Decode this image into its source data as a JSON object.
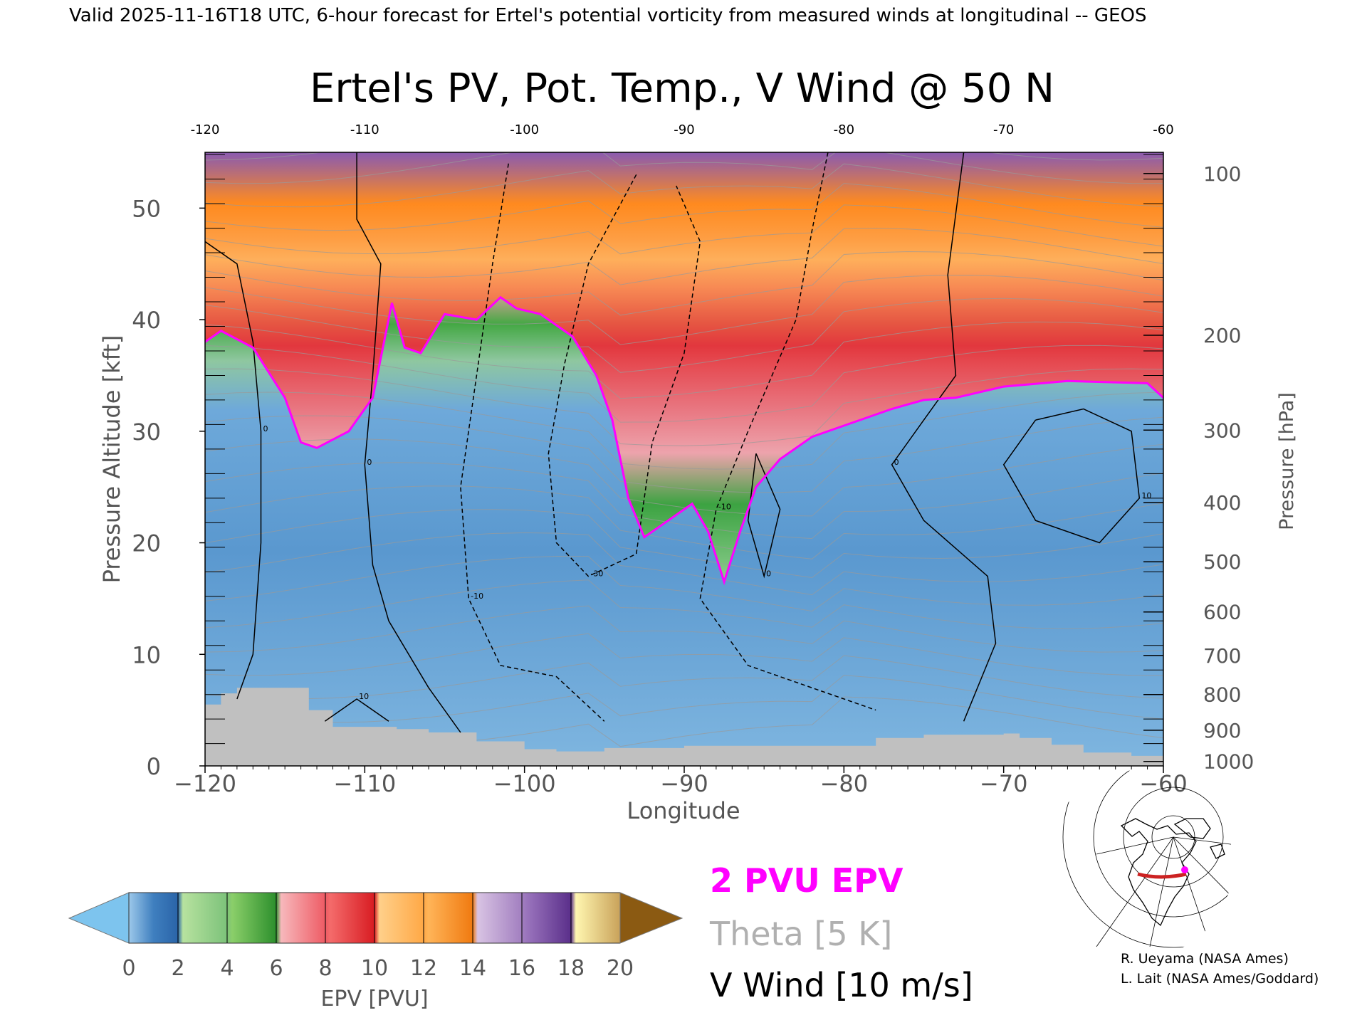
{
  "header": {
    "valid_line": "Valid 2025-11-16T18 UTC, 6-hour forecast for Ertel's potential vorticity from measured winds at longitudinal -- GEOS"
  },
  "chart_data": {
    "type": "heatmap",
    "title": "Ertel's PV, Pot. Temp., V Wind @ 50 N",
    "xlabel": "Longitude",
    "ylabel_left": "Pressure Altitude [kft]",
    "ylabel_right": "Pressure [hPa]",
    "xlim": [
      -120,
      -60
    ],
    "ylim": [
      0,
      55
    ],
    "x_ticks": [
      -120,
      -110,
      -100,
      -90,
      -80,
      -70,
      -60
    ],
    "x_tick_labels": [
      "−120",
      "−110",
      "−100",
      "−90",
      "−80",
      "−70",
      "−60"
    ],
    "top_tick_labels": [
      "-120",
      "-110",
      "-100",
      "-90",
      "-80",
      "-70",
      "-60"
    ],
    "y_ticks": [
      0,
      10,
      20,
      30,
      40,
      50
    ],
    "y_tick_labels": [
      "0",
      "10",
      "20",
      "30",
      "40",
      "50"
    ],
    "pressure_ticks": [
      {
        "hpa": "100",
        "kft": 53.1
      },
      {
        "hpa": "200",
        "kft": 38.6
      },
      {
        "hpa": "300",
        "kft": 30.1
      },
      {
        "hpa": "400",
        "kft": 23.6
      },
      {
        "hpa": "500",
        "kft": 18.3
      },
      {
        "hpa": "600",
        "kft": 13.8
      },
      {
        "hpa": "700",
        "kft": 9.9
      },
      {
        "hpa": "800",
        "kft": 6.4
      },
      {
        "hpa": "900",
        "kft": 3.2
      },
      {
        "hpa": "1000",
        "kft": 0.4
      }
    ],
    "pv_2pvu_contour": [
      [
        -120,
        38
      ],
      [
        -119,
        39
      ],
      [
        -117,
        37.5
      ],
      [
        -115,
        33
      ],
      [
        -114,
        29
      ],
      [
        -113,
        28.5
      ],
      [
        -111,
        30
      ],
      [
        -109.5,
        33
      ],
      [
        -108.3,
        41.5
      ],
      [
        -107.5,
        37.5
      ],
      [
        -106.5,
        37
      ],
      [
        -105,
        40.5
      ],
      [
        -103,
        40
      ],
      [
        -101.5,
        42
      ],
      [
        -100.5,
        41
      ],
      [
        -99,
        40.5
      ],
      [
        -97,
        38.5
      ],
      [
        -95.5,
        35
      ],
      [
        -94.5,
        31
      ],
      [
        -93.5,
        24
      ],
      [
        -92.5,
        20.5
      ],
      [
        -91,
        22
      ],
      [
        -89.5,
        23.5
      ],
      [
        -88.5,
        21
      ],
      [
        -87.5,
        16.5
      ],
      [
        -86.5,
        21
      ],
      [
        -85.5,
        25
      ],
      [
        -84,
        27.5
      ],
      [
        -82,
        29.5
      ],
      [
        -80,
        30.5
      ],
      [
        -77,
        32
      ],
      [
        -75,
        32.8
      ],
      [
        -73,
        33
      ],
      [
        -70,
        34
      ],
      [
        -66,
        34.5
      ],
      [
        -61,
        34.3
      ],
      [
        -60,
        33
      ]
    ],
    "theta_interval_label": "Theta [5 K]",
    "v_wind_contours": [
      {
        "label": "0",
        "points": [
          [
            -110.5,
            55
          ],
          [
            -110.5,
            49
          ],
          [
            -109,
            45
          ],
          [
            -109.5,
            35
          ],
          [
            -110,
            27
          ],
          [
            -109.5,
            18
          ],
          [
            -108.5,
            13
          ],
          [
            -106,
            7
          ],
          [
            -104,
            3
          ]
        ]
      },
      {
        "label": "0",
        "points": [
          [
            -72.5,
            55
          ],
          [
            -73.5,
            44
          ],
          [
            -73,
            35
          ],
          [
            -75,
            31
          ],
          [
            -77,
            27
          ],
          [
            -75,
            22
          ],
          [
            -71,
            17
          ],
          [
            -70.5,
            11
          ],
          [
            -72.5,
            4
          ]
        ]
      },
      {
        "label": "0",
        "points": [
          [
            -120,
            47
          ],
          [
            -118,
            45
          ],
          [
            -117,
            38
          ],
          [
            -116.5,
            30
          ],
          [
            -116.5,
            20
          ],
          [
            -117,
            10
          ],
          [
            -118,
            6
          ]
        ]
      },
      {
        "label": "-10",
        "points": [
          [
            -101,
            54
          ],
          [
            -102,
            45
          ],
          [
            -103,
            35
          ],
          [
            -104,
            25
          ],
          [
            -103.5,
            15
          ],
          [
            -101.5,
            9
          ],
          [
            -98,
            8
          ],
          [
            -95,
            4
          ]
        ]
      },
      {
        "label": "-30",
        "points": [
          [
            -93,
            53
          ],
          [
            -96,
            45
          ],
          [
            -97.5,
            36
          ],
          [
            -98.5,
            28
          ],
          [
            -98,
            20
          ],
          [
            -96,
            17
          ],
          [
            -93,
            19
          ],
          [
            -92,
            29
          ],
          [
            -90,
            37
          ],
          [
            -89,
            47
          ],
          [
            -90.5,
            52
          ]
        ]
      },
      {
        "label": "-10",
        "points": [
          [
            -81,
            55
          ],
          [
            -82,
            48
          ],
          [
            -83,
            40
          ],
          [
            -86,
            30
          ],
          [
            -88,
            23
          ],
          [
            -89,
            15
          ],
          [
            -86,
            9
          ],
          [
            -82,
            7
          ],
          [
            -78,
            5
          ]
        ]
      },
      {
        "label": "0",
        "points": [
          [
            -85.5,
            28
          ],
          [
            -86,
            22
          ],
          [
            -85,
            17
          ],
          [
            -84,
            23
          ],
          [
            -85.5,
            28
          ]
        ]
      },
      {
        "label": "10",
        "points": [
          [
            -68,
            31
          ],
          [
            -70,
            27
          ],
          [
            -68,
            22
          ],
          [
            -64,
            20
          ],
          [
            -61.5,
            24
          ],
          [
            -62,
            30
          ],
          [
            -65,
            32
          ],
          [
            -68,
            31
          ]
        ]
      },
      {
        "label": "10",
        "points": [
          [
            -112.5,
            4
          ],
          [
            -110.5,
            6
          ],
          [
            -108.5,
            4
          ]
        ]
      }
    ],
    "colorbar": {
      "label": "EPV [PVU]",
      "tick_labels": [
        "0",
        "2",
        "4",
        "6",
        "8",
        "10",
        "12",
        "14",
        "16",
        "18",
        "20"
      ],
      "under_color": "#7dc4ee",
      "over_color": "#8b5a12"
    },
    "legend": [
      {
        "label": "2 PVU EPV",
        "color": "#ff00ff"
      },
      {
        "label": "Theta [5 K]",
        "color": "#b0b0b0"
      },
      {
        "label": "V Wind [10 m/s]",
        "color": "#000000"
      }
    ]
  },
  "credits": {
    "line1": "R. Ueyama (NASA Ames)",
    "line2": "L. Lait (NASA Ames/Goddard)"
  },
  "colors": {
    "pv_lo": "#4f8cc4",
    "pv_mid": "#7fb3dd",
    "pv_green": "#3aa33a",
    "pv_red": "#e8303a",
    "pv_orange": "#ff8a1e",
    "pv_purple": "#8a5bb0",
    "terrain": "#c0c0c0",
    "contour_2pvu": "#ff00ff"
  }
}
